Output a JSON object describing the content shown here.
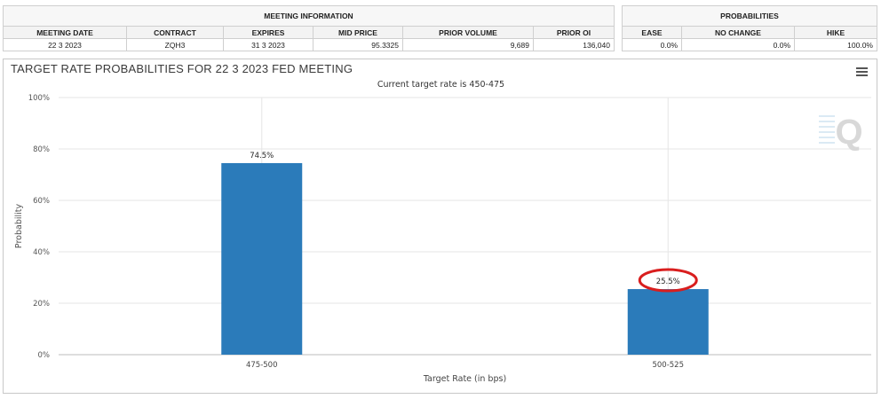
{
  "meeting_info": {
    "title": "MEETING INFORMATION",
    "columns": [
      "MEETING DATE",
      "CONTRACT",
      "EXPIRES",
      "MID PRICE",
      "PRIOR VOLUME",
      "PRIOR OI"
    ],
    "row": [
      "22 3 2023",
      "ZQH3",
      "31 3 2023",
      "95.3325",
      "9,689",
      "136,040"
    ]
  },
  "probabilities": {
    "title": "PROBABILITIES",
    "columns": [
      "EASE",
      "NO CHANGE",
      "HIKE"
    ],
    "row": [
      "0.0%",
      "0.0%",
      "100.0%"
    ]
  },
  "chart_data": {
    "type": "bar",
    "title": "TARGET RATE PROBABILITIES FOR 22 3 2023 FED MEETING",
    "subtitle": "Current target rate is 450-475",
    "categories": [
      "475-500",
      "500-525"
    ],
    "values": [
      74.5,
      25.5
    ],
    "data_labels": [
      "74.5%",
      "25.5%"
    ],
    "xlabel": "Target Rate (in bps)",
    "ylabel": "Probability",
    "ylim": [
      0,
      100
    ],
    "yticks": [
      0,
      20,
      40,
      60,
      80,
      100
    ],
    "ytick_labels": [
      "0%",
      "20%",
      "40%",
      "60%",
      "80%",
      "100%"
    ],
    "grid": true,
    "bar_color": "#2b7bba",
    "highlight_color": "#d91e1e",
    "highlighted_category": "500-525"
  },
  "watermark_letter": "Q",
  "menu_icon": "hamburger-menu-icon"
}
